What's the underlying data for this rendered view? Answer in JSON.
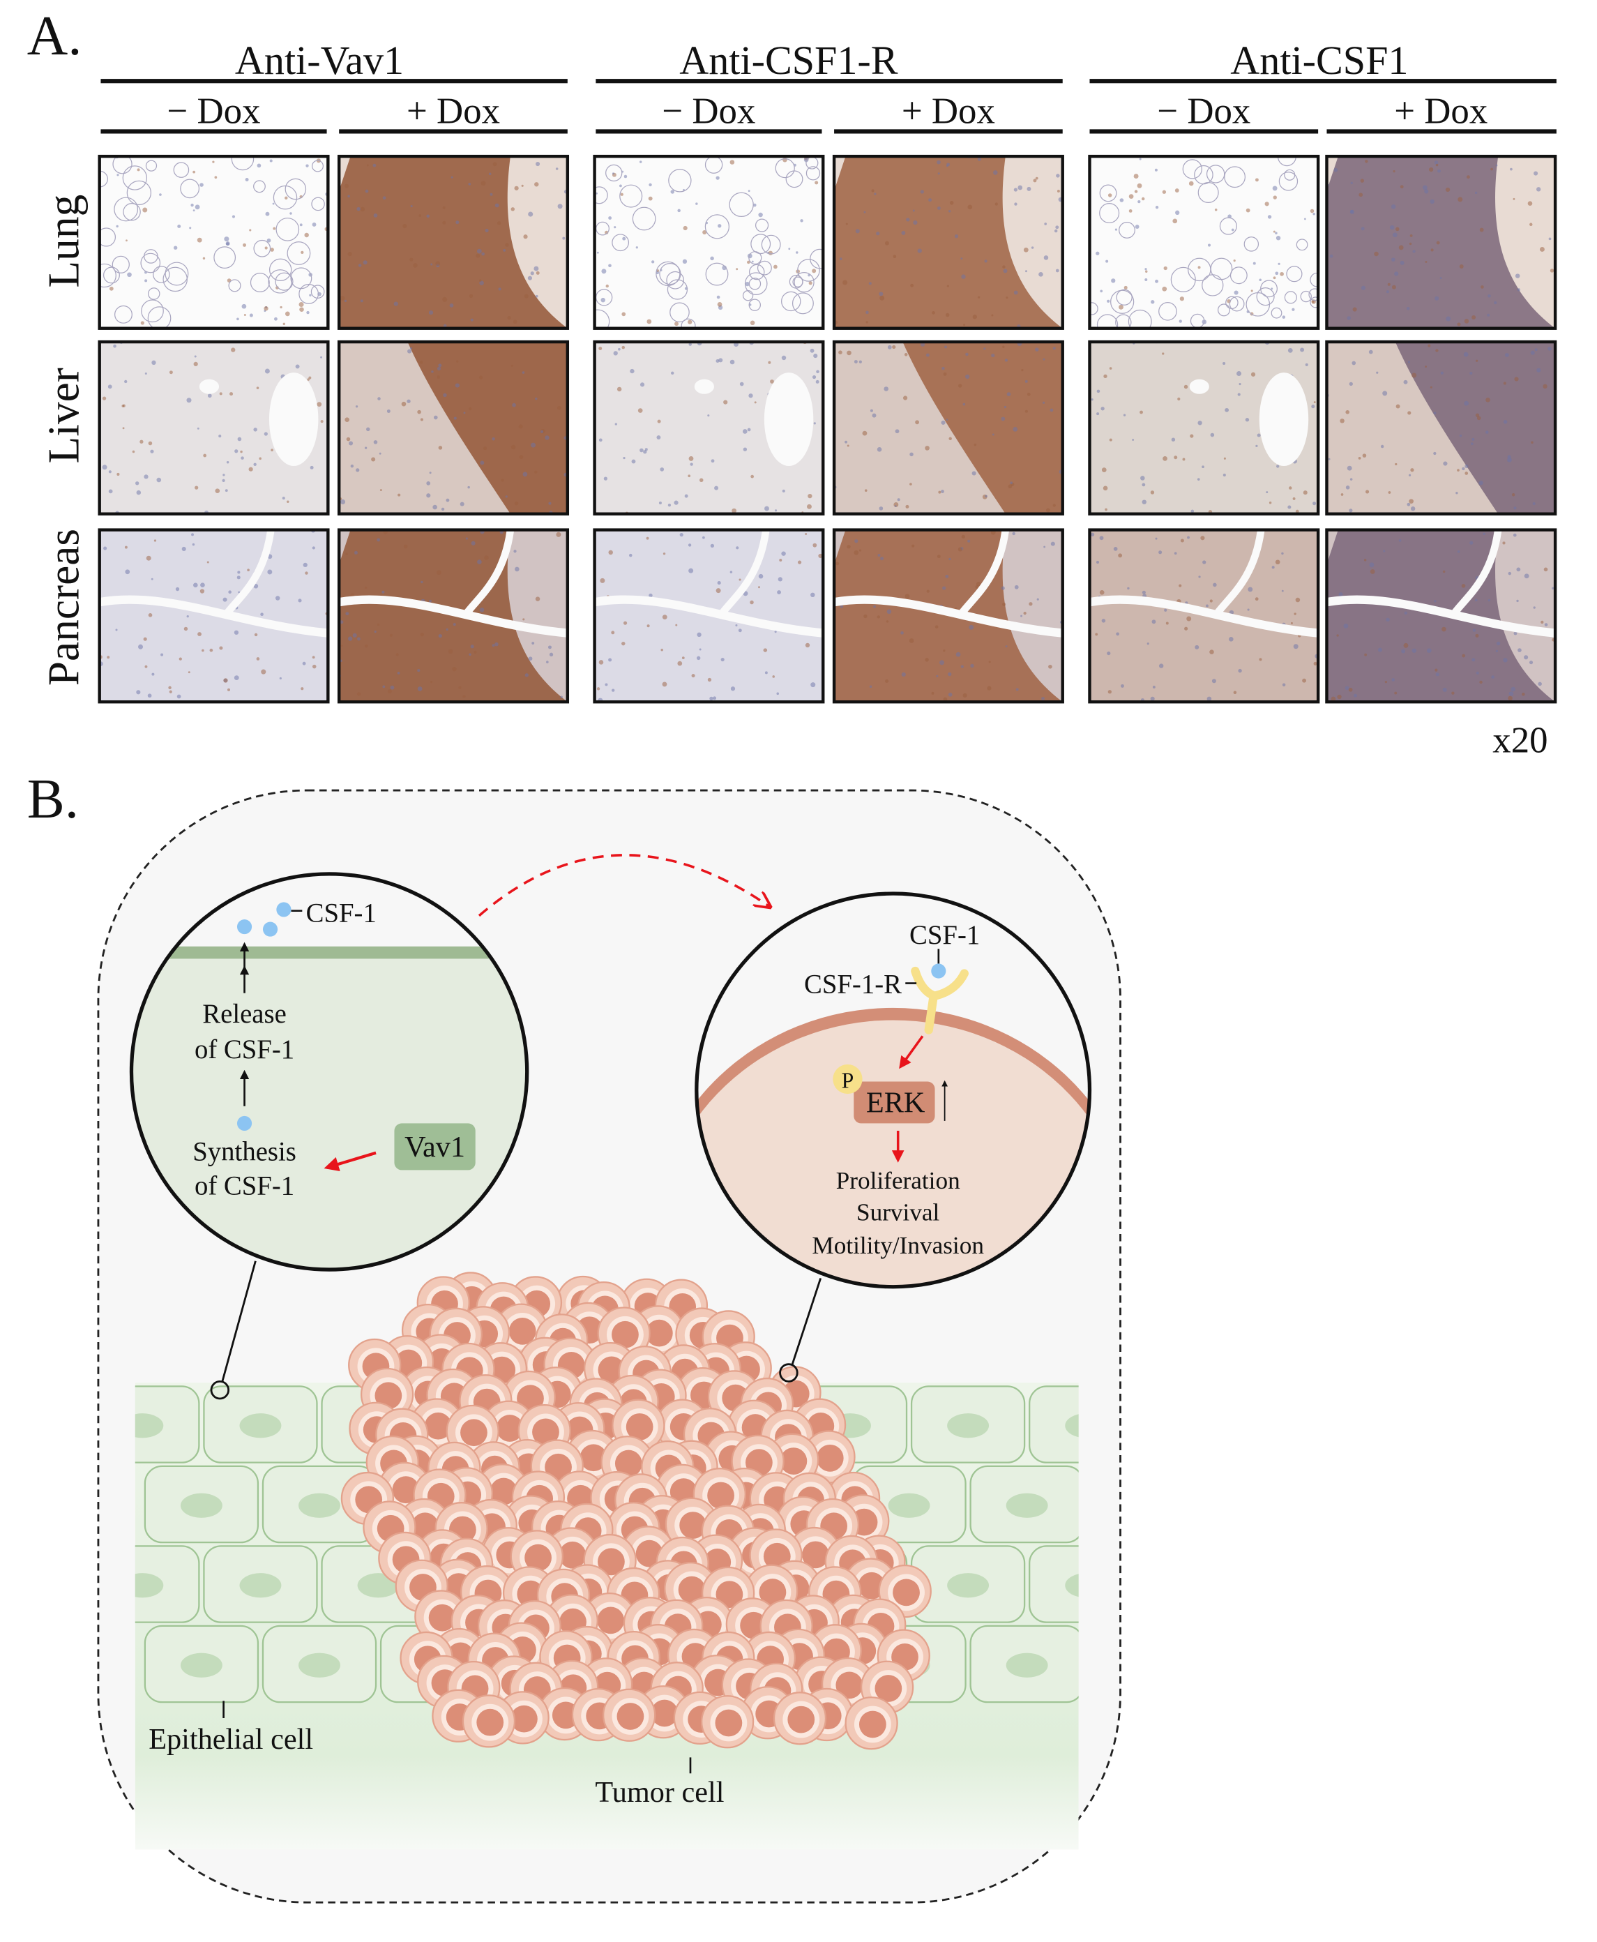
{
  "panel_a": {
    "label": "A.",
    "antibodies": [
      {
        "title": "Anti-Vav1",
        "conditions": [
          "− Dox",
          "+ Dox"
        ]
      },
      {
        "title": "Anti-CSF1-R",
        "conditions": [
          "− Dox",
          "+ Dox"
        ]
      },
      {
        "title": "Anti-CSF1",
        "conditions": [
          "− Dox",
          "+ Dox"
        ]
      }
    ],
    "tissues": [
      "Lung",
      "Liver",
      "Pancreas"
    ],
    "magnification": "x20",
    "colors": {
      "stain_brown": "#8a4a2a",
      "hematoxylin_blue": "#6c73a8",
      "background": "#f4f2f2"
    }
  },
  "panel_b": {
    "label": "B.",
    "left_inset": {
      "csf1_label": "CSF-1",
      "release_label": [
        "Release",
        "of CSF-1"
      ],
      "synthesis_label": [
        "Synthesis",
        "of CSF-1"
      ],
      "vav1_label": "Vav1"
    },
    "right_inset": {
      "csf1_label": "CSF-1",
      "receptor_label": "CSF-1-R",
      "p_label": "P",
      "erk_label": "ERK",
      "outcomes": [
        "Proliferation",
        "Survival",
        "Motility/Invasion"
      ]
    },
    "epithelial_label": "Epithelial cell",
    "tumor_label": "Tumor cell",
    "colors": {
      "epithelium": "#e3eedd",
      "tumor": "#f2c9b8",
      "nucleus": "#dc8e77",
      "csf1": "#8cc4f2",
      "receptor": "#f7e08a",
      "erk": "#d18c74",
      "vav1": "#9fbe96",
      "arrow": "#e8141b"
    }
  }
}
